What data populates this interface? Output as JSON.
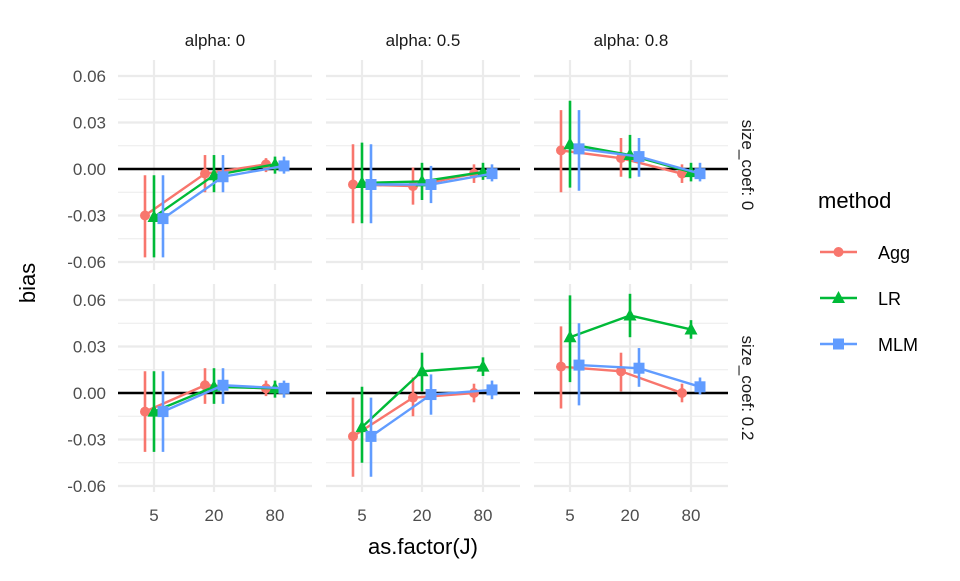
{
  "chart_data": {
    "type": "line",
    "subtype": "faceted point-range line plot",
    "xlabel": "as.factor(J)",
    "ylabel": "bias",
    "categories": [
      "5",
      "20",
      "80"
    ],
    "ylim": [
      -0.065,
      0.065
    ],
    "yticks": [
      -0.06,
      -0.03,
      0.0,
      0.03,
      0.06
    ],
    "ytick_labels": [
      "-0.06",
      "-0.03",
      "0.00",
      "0.03",
      "0.06"
    ],
    "grid": true,
    "reference_line": 0,
    "legend": {
      "title": "method",
      "placement": "right",
      "entries": [
        {
          "name": "Agg",
          "color": "#F8766D",
          "shape": "circle"
        },
        {
          "name": "LR",
          "color": "#00BA38",
          "shape": "triangle"
        },
        {
          "name": "MLM",
          "color": "#619CFF",
          "shape": "square"
        }
      ]
    },
    "facet_cols": {
      "variable": "alpha",
      "labels": [
        "alpha: 0",
        "alpha: 0.5",
        "alpha: 0.8"
      ]
    },
    "facet_rows": {
      "variable": "size_coef",
      "labels": [
        "size_coef: 0",
        "size_coef: 0.2"
      ]
    },
    "panels": [
      {
        "row": 0,
        "col": 0,
        "series": [
          {
            "name": "Agg",
            "values": [
              -0.03,
              -0.003,
              0.003
            ],
            "lower": [
              -0.057,
              -0.015,
              -0.002
            ],
            "upper": [
              -0.004,
              0.009,
              0.007
            ]
          },
          {
            "name": "LR",
            "values": [
              -0.031,
              -0.004,
              0.003
            ],
            "lower": [
              -0.057,
              -0.015,
              -0.003
            ],
            "upper": [
              -0.004,
              0.009,
              0.008
            ]
          },
          {
            "name": "MLM",
            "values": [
              -0.032,
              -0.005,
              0.002
            ],
            "lower": [
              -0.057,
              -0.015,
              -0.003
            ],
            "upper": [
              -0.004,
              0.009,
              0.008
            ]
          }
        ]
      },
      {
        "row": 0,
        "col": 1,
        "series": [
          {
            "name": "Agg",
            "values": [
              -0.01,
              -0.011,
              -0.003
            ],
            "lower": [
              -0.035,
              -0.023,
              -0.009
            ],
            "upper": [
              0.016,
              0.001,
              0.003
            ]
          },
          {
            "name": "LR",
            "values": [
              -0.009,
              -0.008,
              -0.002
            ],
            "lower": [
              -0.035,
              -0.02,
              -0.007
            ],
            "upper": [
              0.017,
              0.004,
              0.004
            ]
          },
          {
            "name": "MLM",
            "values": [
              -0.01,
              -0.01,
              -0.003
            ],
            "lower": [
              -0.035,
              -0.022,
              -0.008
            ],
            "upper": [
              0.016,
              0.002,
              0.003
            ]
          }
        ]
      },
      {
        "row": 0,
        "col": 2,
        "series": [
          {
            "name": "Agg",
            "values": [
              0.012,
              0.007,
              -0.003
            ],
            "lower": [
              -0.015,
              -0.005,
              -0.009
            ],
            "upper": [
              0.038,
              0.02,
              0.003
            ]
          },
          {
            "name": "LR",
            "values": [
              0.016,
              0.009,
              -0.002
            ],
            "lower": [
              -0.012,
              -0.006,
              -0.008
            ],
            "upper": [
              0.044,
              0.022,
              0.004
            ]
          },
          {
            "name": "MLM",
            "values": [
              0.013,
              0.008,
              -0.003
            ],
            "lower": [
              -0.014,
              -0.005,
              -0.008
            ],
            "upper": [
              0.038,
              0.02,
              0.004
            ]
          }
        ]
      },
      {
        "row": 1,
        "col": 0,
        "series": [
          {
            "name": "Agg",
            "values": [
              -0.012,
              0.005,
              0.003
            ],
            "lower": [
              -0.038,
              -0.007,
              -0.002
            ],
            "upper": [
              0.014,
              0.016,
              0.008
            ]
          },
          {
            "name": "LR",
            "values": [
              -0.012,
              0.004,
              0.003
            ],
            "lower": [
              -0.038,
              -0.007,
              -0.003
            ],
            "upper": [
              0.014,
              0.016,
              0.008
            ]
          },
          {
            "name": "MLM",
            "values": [
              -0.012,
              0.005,
              0.003
            ],
            "lower": [
              -0.038,
              -0.007,
              -0.003
            ],
            "upper": [
              0.014,
              0.016,
              0.008
            ]
          }
        ]
      },
      {
        "row": 1,
        "col": 1,
        "series": [
          {
            "name": "Agg",
            "values": [
              -0.028,
              -0.003,
              0.0
            ],
            "lower": [
              -0.054,
              -0.015,
              -0.006
            ],
            "upper": [
              -0.003,
              0.01,
              0.006
            ]
          },
          {
            "name": "LR",
            "values": [
              -0.022,
              0.014,
              0.017
            ],
            "lower": [
              -0.045,
              0.001,
              0.011
            ],
            "upper": [
              0.004,
              0.026,
              0.023
            ]
          },
          {
            "name": "MLM",
            "values": [
              -0.028,
              -0.001,
              0.002
            ],
            "lower": [
              -0.054,
              -0.014,
              -0.004
            ],
            "upper": [
              -0.003,
              0.012,
              0.008
            ]
          }
        ]
      },
      {
        "row": 1,
        "col": 2,
        "series": [
          {
            "name": "Agg",
            "values": [
              0.017,
              0.014,
              0.0
            ],
            "lower": [
              -0.01,
              0.001,
              -0.006
            ],
            "upper": [
              0.043,
              0.026,
              0.006
            ]
          },
          {
            "name": "LR",
            "values": [
              0.036,
              0.05,
              0.041
            ],
            "lower": [
              0.007,
              0.036,
              0.035
            ],
            "upper": [
              0.063,
              0.064,
              0.047
            ]
          },
          {
            "name": "MLM",
            "values": [
              0.018,
              0.016,
              0.004
            ],
            "lower": [
              -0.008,
              0.004,
              -0.001
            ],
            "upper": [
              0.045,
              0.029,
              0.01
            ]
          }
        ]
      }
    ]
  }
}
